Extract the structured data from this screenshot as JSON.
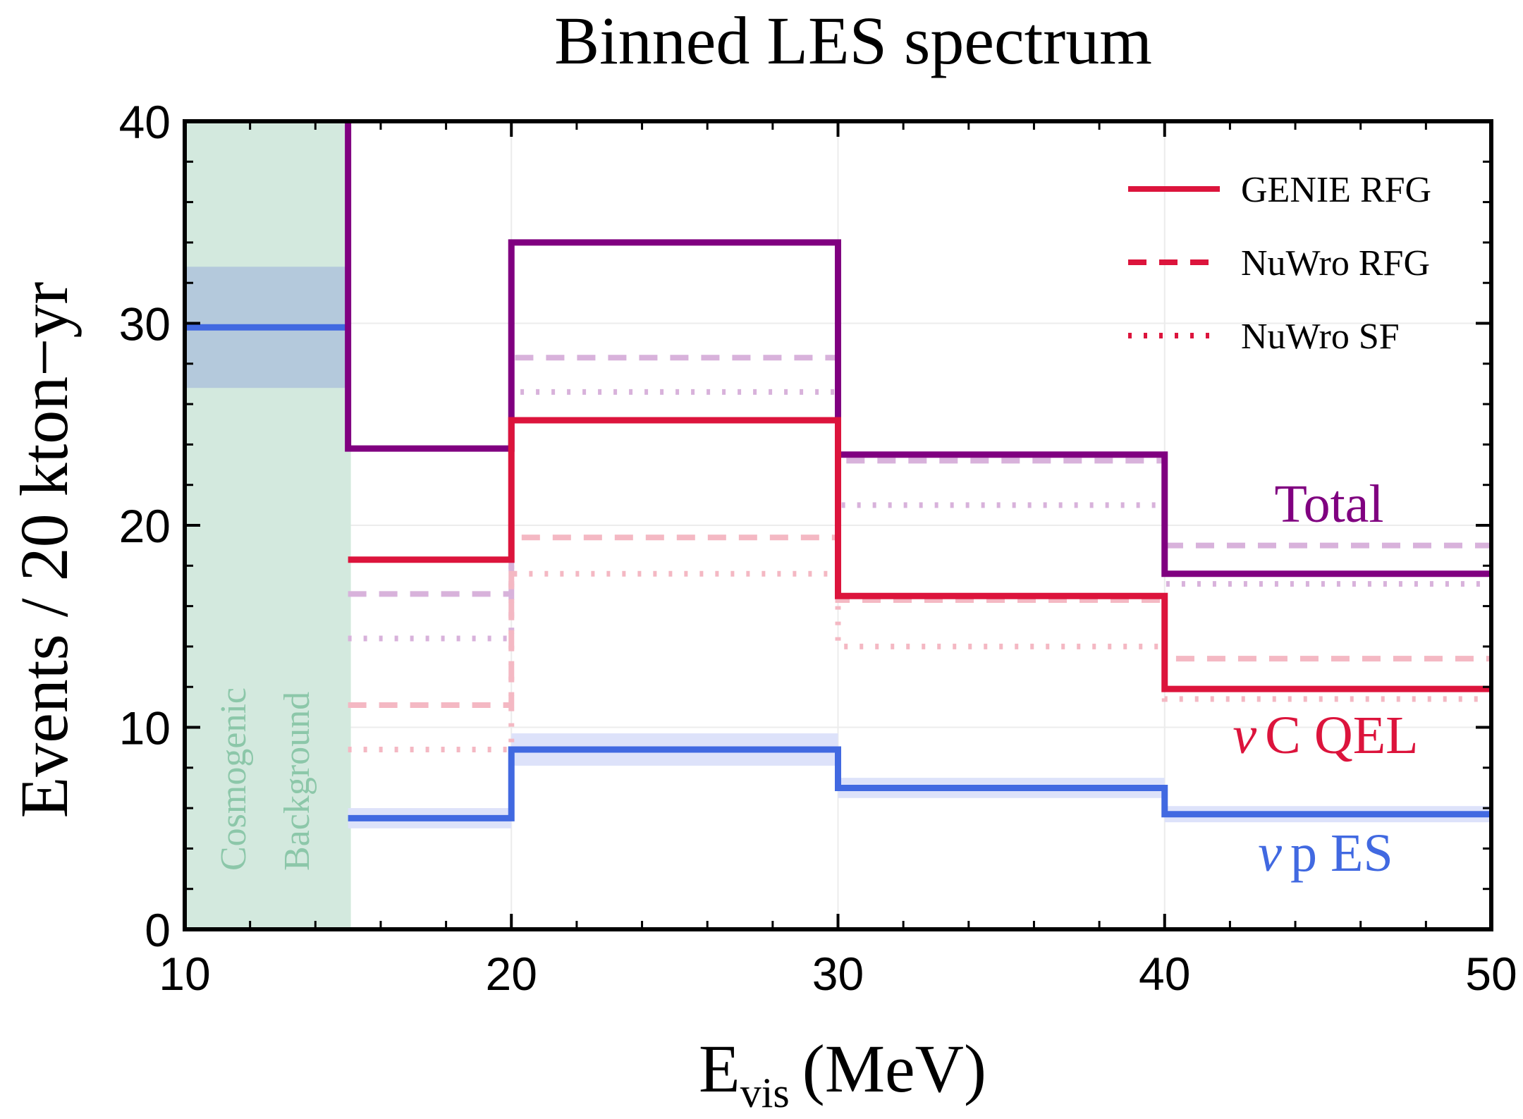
{
  "chart_data": {
    "type": "line",
    "title": "Binned LES spectrum",
    "xlabel_main": "E",
    "xlabel_sub": "vis",
    "xlabel_unit": "(MeV)",
    "ylabel": "Events / 20 kton−yr",
    "xlim": [
      10,
      50
    ],
    "ylim": [
      0,
      40
    ],
    "grid": true,
    "xticks": [
      10,
      20,
      30,
      40,
      50
    ],
    "yticks": [
      0,
      10,
      20,
      30,
      40
    ],
    "background_region": {
      "x_range": [
        10,
        15
      ],
      "label_line1": "Cosmogenic",
      "label_line2": "Background",
      "color": "#d3e9de",
      "text_color": "#8cc7a9",
      "value": 29.8,
      "band": [
        26.8,
        32.8
      ],
      "line_color": "#4169e1",
      "band_color": "#b4c9dc"
    },
    "bin_edges": [
      15,
      20,
      30,
      40,
      50
    ],
    "series": [
      {
        "group": "total",
        "model": "GENIE RFG",
        "style": "solid",
        "color": "#800080",
        "values": [
          23.8,
          34.0,
          23.5,
          17.6
        ]
      },
      {
        "group": "total",
        "model": "NuWro RFG",
        "style": "dashed",
        "color": "#d8b2db",
        "values": [
          16.6,
          28.3,
          23.2,
          19.0
        ]
      },
      {
        "group": "total",
        "model": "NuWro SF",
        "style": "dotted",
        "color": "#d8b2db",
        "values": [
          14.4,
          26.6,
          21.0,
          17.1
        ]
      },
      {
        "group": "qel",
        "model": "GENIE RFG",
        "style": "solid",
        "color": "#dc143c",
        "values": [
          18.3,
          25.2,
          16.5,
          11.9
        ]
      },
      {
        "group": "qel",
        "model": "NuWro RFG",
        "style": "dashed",
        "color": "#f4b8c3",
        "values": [
          11.1,
          19.4,
          16.3,
          13.4
        ]
      },
      {
        "group": "qel",
        "model": "NuWro SF",
        "style": "dotted",
        "color": "#f4b8c3",
        "values": [
          8.9,
          17.6,
          14.0,
          11.4
        ]
      },
      {
        "group": "es",
        "model": "",
        "style": "solid",
        "color": "#4169e1",
        "values": [
          5.5,
          8.9,
          7.0,
          5.7
        ],
        "band_lo": [
          5.0,
          8.1,
          6.5,
          5.3
        ],
        "band_hi": [
          6.0,
          9.7,
          7.5,
          6.1
        ],
        "band_color": "#dde2fa"
      }
    ],
    "group_labels": {
      "total": {
        "text": "Total",
        "color": "#800080"
      },
      "qel": {
        "prefix": "ν",
        "text": "C QEL",
        "color": "#dc143c"
      },
      "es": {
        "prefix": "ν",
        "text": "p ES",
        "color": "#4169e1"
      }
    },
    "legend": {
      "placement": "top-right",
      "entries": [
        {
          "label": "GENIE RFG",
          "style": "solid",
          "color": "#dc143c"
        },
        {
          "label": "NuWro RFG",
          "style": "dashed",
          "color": "#dc143c"
        },
        {
          "label": "NuWro SF",
          "style": "dotted",
          "color": "#dc143c"
        }
      ]
    }
  }
}
